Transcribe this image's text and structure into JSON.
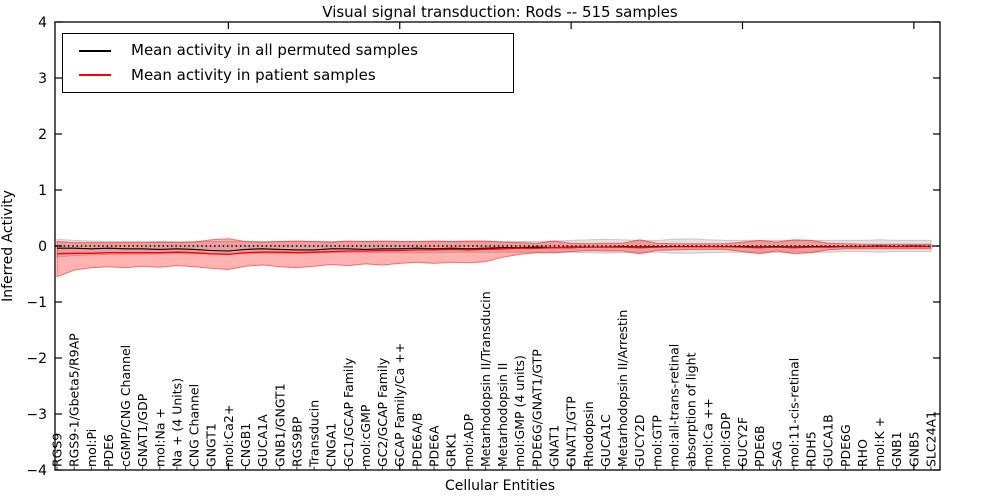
{
  "figure": {
    "title": "Visual signal transduction: Rods -- 515 samples"
  },
  "legend": {
    "position": "upper left",
    "items": [
      {
        "label": "Mean activity in all permuted samples",
        "color": "#000000"
      },
      {
        "label": "Mean activity in patient samples",
        "color": "#ff0000"
      }
    ]
  },
  "chart_data": {
    "type": "line",
    "title": "Visual signal transduction: Rods -- 515 samples",
    "xlabel": "Cellular Entities",
    "ylabel": "Inferred Activity",
    "ylim": [
      -4,
      4
    ],
    "ytick_values": [
      4,
      3,
      2,
      1,
      0,
      -1,
      -2,
      -3,
      -4
    ],
    "ytick_labels": [
      "4",
      "3",
      "2",
      "1",
      "0",
      "−1",
      "−2",
      "−3",
      "−4"
    ],
    "grid": false,
    "legend_position": "upper left",
    "categories": [
      "RGS9",
      "RGS9-1/Gbeta5/R9AP",
      "mol:Pi",
      "PDE6",
      "cGMP/CNG Channel",
      "GNAT1/GDP",
      "mol:Na +",
      "Na + (4 Units)",
      "CNG Channel",
      "GNGT1",
      "mol:Ca2+",
      "CNGB1",
      "GUCA1A",
      "GNB1/GNGT1",
      "RGS9BP",
      "Transducin",
      "CNGA1",
      "GC1/GCAP Family",
      "mol:cGMP",
      "GC2/GCAP Family",
      "GCAP Family/Ca ++",
      "PDE6A/B",
      "PDE6A",
      "GRK1",
      "mol:ADP",
      "Metarhodopsin II/Transducin",
      "Metarhodopsin II",
      "mol:GMP (4 units)",
      "PDE6G/GNAT1/GTP",
      "GNAT1",
      "GNAT1/GTP",
      "Rhodopsin",
      "GUCA1C",
      "Metarhodopsin II/Arrestin",
      "GUCY2D",
      "mol:GTP",
      "mol:all-trans-retinal",
      "absorption of light",
      "mol:Ca ++",
      "mol:GDP",
      "GUCY2F",
      "PDE6B",
      "SAG",
      "mol:11-cis-retinal",
      "RDH5",
      "GUCA1B",
      "PDE6G",
      "RHO",
      "mol:K +",
      "GNB1",
      "GNB5",
      "SLC24A1"
    ],
    "baseline": {
      "value": 0,
      "style": "dotted",
      "color": "#000000"
    },
    "series": [
      {
        "name": "Mean activity in all permuted samples",
        "color": "#000000",
        "style": "solid",
        "values": [
          -0.04,
          -0.04,
          -0.05,
          -0.04,
          -0.05,
          -0.05,
          -0.06,
          -0.05,
          -0.06,
          -0.08,
          -0.09,
          -0.06,
          -0.05,
          -0.06,
          -0.07,
          -0.07,
          -0.05,
          -0.05,
          -0.06,
          -0.05,
          -0.05,
          -0.04,
          -0.05,
          -0.04,
          -0.05,
          -0.04,
          -0.03,
          -0.03,
          -0.02,
          -0.03,
          -0.02,
          -0.02,
          -0.02,
          -0.01,
          -0.02,
          -0.01,
          -0.01,
          -0.01,
          -0.01,
          -0.01,
          -0.01,
          -0.02,
          -0.01,
          -0.02,
          -0.01,
          -0.01,
          -0.01,
          -0.01,
          0.0,
          -0.01,
          0.0,
          -0.01
        ]
      },
      {
        "name": "Mean activity in patient samples",
        "color": "#ff0000",
        "style": "solid",
        "values": [
          -0.14,
          -0.13,
          -0.13,
          -0.12,
          -0.12,
          -0.12,
          -0.12,
          -0.11,
          -0.12,
          -0.14,
          -0.15,
          -0.12,
          -0.11,
          -0.11,
          -0.12,
          -0.11,
          -0.1,
          -0.09,
          -0.09,
          -0.08,
          -0.08,
          -0.07,
          -0.07,
          -0.06,
          -0.07,
          -0.06,
          -0.05,
          -0.04,
          -0.04,
          -0.03,
          -0.03,
          -0.02,
          -0.02,
          -0.02,
          -0.03,
          -0.02,
          -0.01,
          -0.01,
          -0.01,
          -0.01,
          -0.02,
          -0.03,
          -0.02,
          -0.03,
          -0.02,
          -0.02,
          -0.01,
          -0.01,
          -0.01,
          -0.01,
          -0.01,
          -0.01
        ]
      }
    ],
    "bands": [
      {
        "name": "permuted_samples_std_band",
        "fill": "#999999",
        "fill_opacity": 0.28,
        "edge_opacity": 0.45,
        "upper": [
          0.12,
          0.1,
          0.09,
          0.08,
          0.08,
          0.08,
          0.08,
          0.08,
          0.08,
          0.08,
          0.08,
          0.08,
          0.08,
          0.08,
          0.08,
          0.08,
          0.08,
          0.08,
          0.08,
          0.08,
          0.08,
          0.08,
          0.08,
          0.08,
          0.08,
          0.08,
          0.08,
          0.08,
          0.08,
          0.09,
          0.1,
          0.11,
          0.12,
          0.11,
          0.1,
          0.1,
          0.12,
          0.13,
          0.11,
          0.1,
          0.1,
          0.1,
          0.1,
          0.1,
          0.1,
          0.1,
          0.1,
          0.1,
          0.11,
          0.1,
          0.1,
          0.1
        ],
        "lower": [
          -0.2,
          -0.17,
          -0.16,
          -0.15,
          -0.15,
          -0.15,
          -0.14,
          -0.14,
          -0.14,
          -0.14,
          -0.14,
          -0.13,
          -0.13,
          -0.13,
          -0.13,
          -0.13,
          -0.12,
          -0.12,
          -0.12,
          -0.12,
          -0.12,
          -0.12,
          -0.12,
          -0.11,
          -0.11,
          -0.11,
          -0.11,
          -0.11,
          -0.11,
          -0.11,
          -0.11,
          -0.12,
          -0.13,
          -0.12,
          -0.11,
          -0.11,
          -0.13,
          -0.13,
          -0.12,
          -0.11,
          -0.11,
          -0.11,
          -0.11,
          -0.11,
          -0.11,
          -0.11,
          -0.1,
          -0.1,
          -0.11,
          -0.1,
          -0.1,
          -0.1
        ]
      },
      {
        "name": "patient_samples_std_band",
        "fill": "#ff0000",
        "fill_opacity": 0.3,
        "edge_opacity": 0.5,
        "upper": [
          0.08,
          0.06,
          0.06,
          0.06,
          0.06,
          0.06,
          0.07,
          0.06,
          0.07,
          0.11,
          0.13,
          0.08,
          0.07,
          0.08,
          0.09,
          0.08,
          0.07,
          0.09,
          0.08,
          0.09,
          0.08,
          0.08,
          0.09,
          0.08,
          0.09,
          0.09,
          0.07,
          0.06,
          0.05,
          0.09,
          0.05,
          0.04,
          0.05,
          0.05,
          0.11,
          0.05,
          0.04,
          0.04,
          0.04,
          0.04,
          0.07,
          0.1,
          0.07,
          0.11,
          0.1,
          0.05,
          0.04,
          0.03,
          0.03,
          0.03,
          0.03,
          0.03
        ],
        "lower": [
          -0.55,
          -0.43,
          -0.39,
          -0.37,
          -0.39,
          -0.36,
          -0.38,
          -0.35,
          -0.37,
          -0.4,
          -0.42,
          -0.36,
          -0.34,
          -0.37,
          -0.39,
          -0.36,
          -0.33,
          -0.35,
          -0.32,
          -0.34,
          -0.31,
          -0.29,
          -0.31,
          -0.29,
          -0.3,
          -0.28,
          -0.2,
          -0.15,
          -0.12,
          -0.12,
          -0.1,
          -0.08,
          -0.09,
          -0.09,
          -0.14,
          -0.08,
          -0.07,
          -0.06,
          -0.06,
          -0.06,
          -0.1,
          -0.14,
          -0.09,
          -0.14,
          -0.12,
          -0.07,
          -0.05,
          -0.05,
          -0.05,
          -0.05,
          -0.05,
          -0.05
        ]
      }
    ]
  }
}
